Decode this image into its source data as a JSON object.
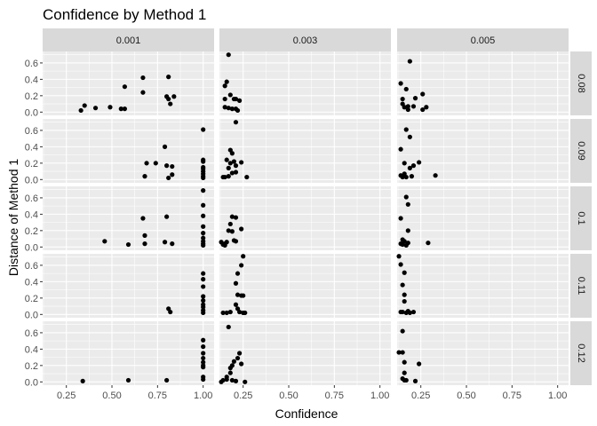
{
  "chart_data": {
    "type": "scatter",
    "title": "Confidence by Method 1",
    "xlabel": "Confidence",
    "ylabel": "Distance of Method 1",
    "facet_cols": [
      "0.001",
      "0.003",
      "0.005"
    ],
    "facet_rows": [
      "0.08",
      "0.09",
      "0.1",
      "0.11",
      "0.12"
    ],
    "xlim": [
      0.12,
      1.06
    ],
    "ylim": [
      -0.04,
      0.74
    ],
    "x_ticks": [
      0.25,
      0.5,
      0.75,
      1.0
    ],
    "x_tick_labels": [
      "0.25",
      "0.50",
      "0.75",
      "1.00"
    ],
    "y_ticks": [
      0.0,
      0.2,
      0.4,
      0.6
    ],
    "y_tick_labels": [
      "0.0",
      "0.2",
      "0.4",
      "0.6"
    ],
    "grid": true,
    "point_color": "#000000",
    "panels": [
      {
        "row": "0.08",
        "col": "0.001",
        "points": [
          [
            0.33,
            0.02
          ],
          [
            0.35,
            0.08
          ],
          [
            0.41,
            0.05
          ],
          [
            0.49,
            0.06
          ],
          [
            0.55,
            0.04
          ],
          [
            0.57,
            0.04
          ],
          [
            0.57,
            0.31
          ],
          [
            0.67,
            0.24
          ],
          [
            0.67,
            0.42
          ],
          [
            0.8,
            0.19
          ],
          [
            0.81,
            0.43
          ],
          [
            0.81,
            0.16
          ],
          [
            0.82,
            0.1
          ],
          [
            0.84,
            0.19
          ]
        ]
      },
      {
        "row": "0.08",
        "col": "0.003",
        "points": [
          [
            0.15,
            0.32
          ],
          [
            0.16,
            0.37
          ],
          [
            0.17,
            0.7
          ],
          [
            0.15,
            0.16
          ],
          [
            0.15,
            0.06
          ],
          [
            0.18,
            0.21
          ],
          [
            0.17,
            0.05
          ],
          [
            0.19,
            0.04
          ],
          [
            0.2,
            0.16
          ],
          [
            0.21,
            0.16
          ],
          [
            0.21,
            0.04
          ],
          [
            0.22,
            0.02
          ],
          [
            0.23,
            0.14
          ]
        ]
      },
      {
        "row": "0.08",
        "col": "0.005",
        "points": [
          [
            0.19,
            0.62
          ],
          [
            0.14,
            0.35
          ],
          [
            0.15,
            0.16
          ],
          [
            0.17,
            0.28
          ],
          [
            0.15,
            0.1
          ],
          [
            0.16,
            0.06
          ],
          [
            0.18,
            0.07
          ],
          [
            0.18,
            0.03
          ],
          [
            0.21,
            0.07
          ],
          [
            0.22,
            0.17
          ],
          [
            0.26,
            0.22
          ],
          [
            0.26,
            0.03
          ],
          [
            0.28,
            0.06
          ]
        ]
      },
      {
        "row": "0.09",
        "col": "0.001",
        "points": [
          [
            0.68,
            0.04
          ],
          [
            0.69,
            0.2
          ],
          [
            0.74,
            0.2
          ],
          [
            0.79,
            0.4
          ],
          [
            0.8,
            0.17
          ],
          [
            0.81,
            0.02
          ],
          [
            0.83,
            0.06
          ],
          [
            0.83,
            0.16
          ],
          [
            1.0,
            0.61
          ],
          [
            1.0,
            0.24
          ],
          [
            1.0,
            0.22
          ],
          [
            1.0,
            0.15
          ],
          [
            1.0,
            0.13
          ],
          [
            1.0,
            0.1
          ],
          [
            1.0,
            0.07
          ],
          [
            1.0,
            0.04
          ],
          [
            1.0,
            0.02
          ]
        ]
      },
      {
        "row": "0.09",
        "col": "0.003",
        "points": [
          [
            0.21,
            0.7
          ],
          [
            0.18,
            0.36
          ],
          [
            0.19,
            0.32
          ],
          [
            0.16,
            0.24
          ],
          [
            0.18,
            0.2
          ],
          [
            0.2,
            0.22
          ],
          [
            0.17,
            0.14
          ],
          [
            0.21,
            0.17
          ],
          [
            0.24,
            0.21
          ],
          [
            0.19,
            0.08
          ],
          [
            0.21,
            0.09
          ],
          [
            0.14,
            0.03
          ],
          [
            0.15,
            0.03
          ],
          [
            0.17,
            0.04
          ],
          [
            0.27,
            0.03
          ]
        ]
      },
      {
        "row": "0.09",
        "col": "0.005",
        "points": [
          [
            0.17,
            0.61
          ],
          [
            0.19,
            0.52
          ],
          [
            0.14,
            0.37
          ],
          [
            0.16,
            0.2
          ],
          [
            0.19,
            0.14
          ],
          [
            0.21,
            0.17
          ],
          [
            0.24,
            0.21
          ],
          [
            0.33,
            0.05
          ],
          [
            0.14,
            0.05
          ],
          [
            0.15,
            0.03
          ],
          [
            0.16,
            0.07
          ],
          [
            0.17,
            0.03
          ],
          [
            0.2,
            0.04
          ]
        ]
      },
      {
        "row": "0.1",
        "col": "0.001",
        "points": [
          [
            0.46,
            0.07
          ],
          [
            0.59,
            0.03
          ],
          [
            0.67,
            0.35
          ],
          [
            0.68,
            0.14
          ],
          [
            0.68,
            0.04
          ],
          [
            0.79,
            0.06
          ],
          [
            0.8,
            0.37
          ],
          [
            0.83,
            0.04
          ],
          [
            1.0,
            0.69
          ],
          [
            1.0,
            0.51
          ],
          [
            1.0,
            0.38
          ],
          [
            1.0,
            0.25
          ],
          [
            1.0,
            0.17
          ],
          [
            1.0,
            0.11
          ],
          [
            1.0,
            0.07
          ],
          [
            1.0,
            0.04
          ],
          [
            1.0,
            0.02
          ]
        ]
      },
      {
        "row": "0.1",
        "col": "0.003",
        "points": [
          [
            0.19,
            0.37
          ],
          [
            0.18,
            0.28
          ],
          [
            0.21,
            0.36
          ],
          [
            0.17,
            0.2
          ],
          [
            0.19,
            0.19
          ],
          [
            0.24,
            0.22
          ],
          [
            0.2,
            0.08
          ],
          [
            0.21,
            0.07
          ],
          [
            0.13,
            0.06
          ],
          [
            0.14,
            0.03
          ],
          [
            0.15,
            0.02
          ],
          [
            0.16,
            0.06
          ],
          [
            0.15,
            0.04
          ]
        ]
      },
      {
        "row": "0.1",
        "col": "0.005",
        "points": [
          [
            0.17,
            0.61
          ],
          [
            0.18,
            0.52
          ],
          [
            0.14,
            0.35
          ],
          [
            0.18,
            0.2
          ],
          [
            0.15,
            0.09
          ],
          [
            0.16,
            0.07
          ],
          [
            0.14,
            0.04
          ],
          [
            0.15,
            0.03
          ],
          [
            0.17,
            0.02
          ],
          [
            0.18,
            0.05
          ],
          [
            0.29,
            0.05
          ]
        ]
      },
      {
        "row": "0.11",
        "col": "0.001",
        "points": [
          [
            0.81,
            0.07
          ],
          [
            0.82,
            0.03
          ],
          [
            1.0,
            0.5
          ],
          [
            1.0,
            0.43
          ],
          [
            1.0,
            0.34
          ],
          [
            1.0,
            0.22
          ],
          [
            1.0,
            0.17
          ],
          [
            1.0,
            0.12
          ],
          [
            1.0,
            0.09
          ],
          [
            1.0,
            0.05
          ],
          [
            1.0,
            0.02
          ]
        ]
      },
      {
        "row": "0.11",
        "col": "0.003",
        "points": [
          [
            0.25,
            0.71
          ],
          [
            0.24,
            0.6
          ],
          [
            0.22,
            0.5
          ],
          [
            0.21,
            0.38
          ],
          [
            0.22,
            0.24
          ],
          [
            0.24,
            0.23
          ],
          [
            0.25,
            0.23
          ],
          [
            0.21,
            0.12
          ],
          [
            0.22,
            0.07
          ],
          [
            0.14,
            0.02
          ],
          [
            0.16,
            0.02
          ],
          [
            0.18,
            0.03
          ],
          [
            0.23,
            0.03
          ],
          [
            0.25,
            0.02
          ],
          [
            0.26,
            0.02
          ]
        ]
      },
      {
        "row": "0.11",
        "col": "0.005",
        "points": [
          [
            0.13,
            0.71
          ],
          [
            0.14,
            0.61
          ],
          [
            0.16,
            0.51
          ],
          [
            0.15,
            0.36
          ],
          [
            0.16,
            0.24
          ],
          [
            0.16,
            0.16
          ],
          [
            0.14,
            0.03
          ],
          [
            0.15,
            0.03
          ],
          [
            0.17,
            0.02
          ],
          [
            0.18,
            0.04
          ],
          [
            0.19,
            0.02
          ],
          [
            0.21,
            0.03
          ]
        ]
      },
      {
        "row": "0.12",
        "col": "0.001",
        "points": [
          [
            0.34,
            0.01
          ],
          [
            0.59,
            0.02
          ],
          [
            0.8,
            0.02
          ],
          [
            1.0,
            0.51
          ],
          [
            1.0,
            0.43
          ],
          [
            1.0,
            0.35
          ],
          [
            1.0,
            0.29
          ],
          [
            1.0,
            0.24
          ],
          [
            1.0,
            0.2
          ],
          [
            1.0,
            0.18
          ],
          [
            1.0,
            0.06
          ],
          [
            1.0,
            0.03
          ]
        ]
      },
      {
        "row": "0.12",
        "col": "0.003",
        "points": [
          [
            0.17,
            0.67
          ],
          [
            0.23,
            0.35
          ],
          [
            0.22,
            0.29
          ],
          [
            0.2,
            0.25
          ],
          [
            0.18,
            0.17
          ],
          [
            0.19,
            0.2
          ],
          [
            0.24,
            0.22
          ],
          [
            0.18,
            0.11
          ],
          [
            0.16,
            0.06
          ],
          [
            0.16,
            0.03
          ],
          [
            0.14,
            0.02
          ],
          [
            0.13,
            0.0
          ],
          [
            0.19,
            0.02
          ],
          [
            0.21,
            0.01
          ],
          [
            0.26,
            0.0
          ]
        ]
      },
      {
        "row": "0.12",
        "col": "0.005",
        "points": [
          [
            0.15,
            0.62
          ],
          [
            0.13,
            0.36
          ],
          [
            0.15,
            0.36
          ],
          [
            0.16,
            0.24
          ],
          [
            0.16,
            0.11
          ],
          [
            0.15,
            0.04
          ],
          [
            0.16,
            0.02
          ],
          [
            0.17,
            0.02
          ],
          [
            0.22,
            0.01
          ],
          [
            0.24,
            0.22
          ]
        ]
      }
    ]
  }
}
